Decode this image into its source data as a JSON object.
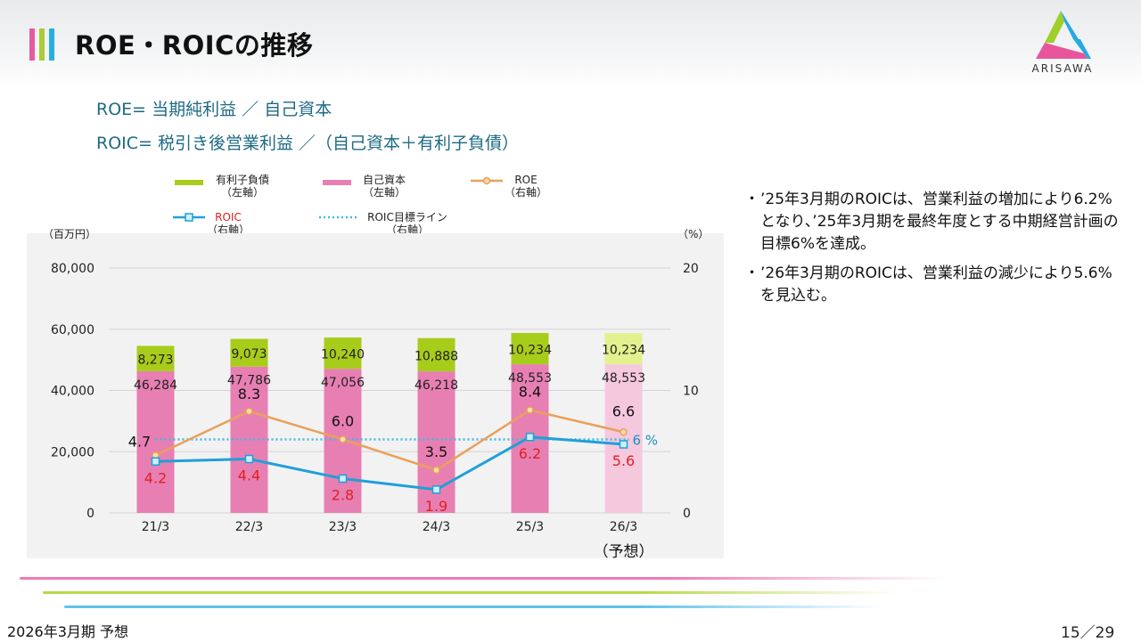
{
  "header": {
    "title": "ROE・ROICの推移",
    "logo_text": "ARISAWA",
    "bar_colors": [
      "#e85aa0",
      "#a8cc3a",
      "#29aee0"
    ]
  },
  "formulas": {
    "roe": "ROE= 当期純利益 ／ 自己資本",
    "roic": "ROIC=  税引き後営業利益 ／（自己資本＋有利子負債）"
  },
  "legend": {
    "debt": {
      "label": "有利子負債",
      "axis": "（左軸）",
      "color": "#a8cc1a"
    },
    "equity": {
      "label": "自己資本",
      "axis": "（左軸）",
      "color": "#e87fb3"
    },
    "roe": {
      "label": "ROE",
      "axis": "（右軸）",
      "color": "#e9a05b"
    },
    "roic": {
      "label": "ROIC",
      "axis": "（右軸）",
      "color": "#1fa0d8",
      "label_color": "#e02020"
    },
    "target": {
      "label": "ROIC目標ライン",
      "axis": "（右軸）",
      "color": "#3fb9e6"
    }
  },
  "chart_data": {
    "type": "bar",
    "categories": [
      "21/3",
      "22/3",
      "23/3",
      "24/3",
      "25/3",
      "26/3"
    ],
    "forecast_label": "（予想）",
    "left_axis": {
      "unit_label": "（百万円）",
      "ticks": [
        "0",
        "20,000",
        "40,000",
        "60,000",
        "80,000"
      ],
      "range": [
        0,
        80000
      ]
    },
    "right_axis": {
      "unit_label": "（%）",
      "ticks": [
        "0",
        "10",
        "20"
      ],
      "range": [
        0,
        20
      ]
    },
    "series": [
      {
        "name": "自己資本",
        "type": "bar",
        "stack": "capital",
        "axis": "left",
        "values": [
          46284,
          47786,
          47056,
          46218,
          48553,
          48553
        ],
        "labels": [
          "46,284",
          "47,786",
          "47,056",
          "46,218",
          "48,553",
          "48,553"
        ]
      },
      {
        "name": "有利子負債",
        "type": "bar",
        "stack": "capital",
        "axis": "left",
        "values": [
          8273,
          9073,
          10240,
          10888,
          10234,
          10234
        ],
        "labels": [
          "8,273",
          "9,073",
          "10,240",
          "10,888",
          "10,234",
          "10,234"
        ]
      },
      {
        "name": "ROE",
        "type": "line",
        "axis": "right",
        "values": [
          4.7,
          8.3,
          6.0,
          3.5,
          8.4,
          6.6
        ],
        "labels": [
          "4.7",
          "8.3",
          "6.0",
          "3.5",
          "8.4",
          "6.6"
        ]
      },
      {
        "name": "ROIC",
        "type": "line",
        "axis": "right",
        "values": [
          4.2,
          4.4,
          2.8,
          1.9,
          6.2,
          5.6
        ],
        "labels": [
          "4.2",
          "4.4",
          "2.8",
          "1.9",
          "6.2",
          "5.6"
        ]
      },
      {
        "name": "ROIC目標ライン",
        "type": "line",
        "style": "dotted",
        "axis": "right",
        "value": 6,
        "label": "6 %"
      }
    ],
    "forecast_index": 5,
    "forecast_colors": {
      "equity": "#f6c8de",
      "debt": "#e3f28f"
    },
    "grid": true
  },
  "bullets": [
    "’25年3月期のROICは、営業利益の増加により6.2%となり、’25年3月期を最終年度とする中期経営計画の目標6%を達成。",
    "’26年3月期のROICは、営業利益の減少により5.6%を見込む。"
  ],
  "footer": {
    "left": "2026年3月期 予想",
    "page": "15／29"
  },
  "deco_colors": [
    "#f07ab2",
    "#b7d94a",
    "#5fc2ec"
  ]
}
